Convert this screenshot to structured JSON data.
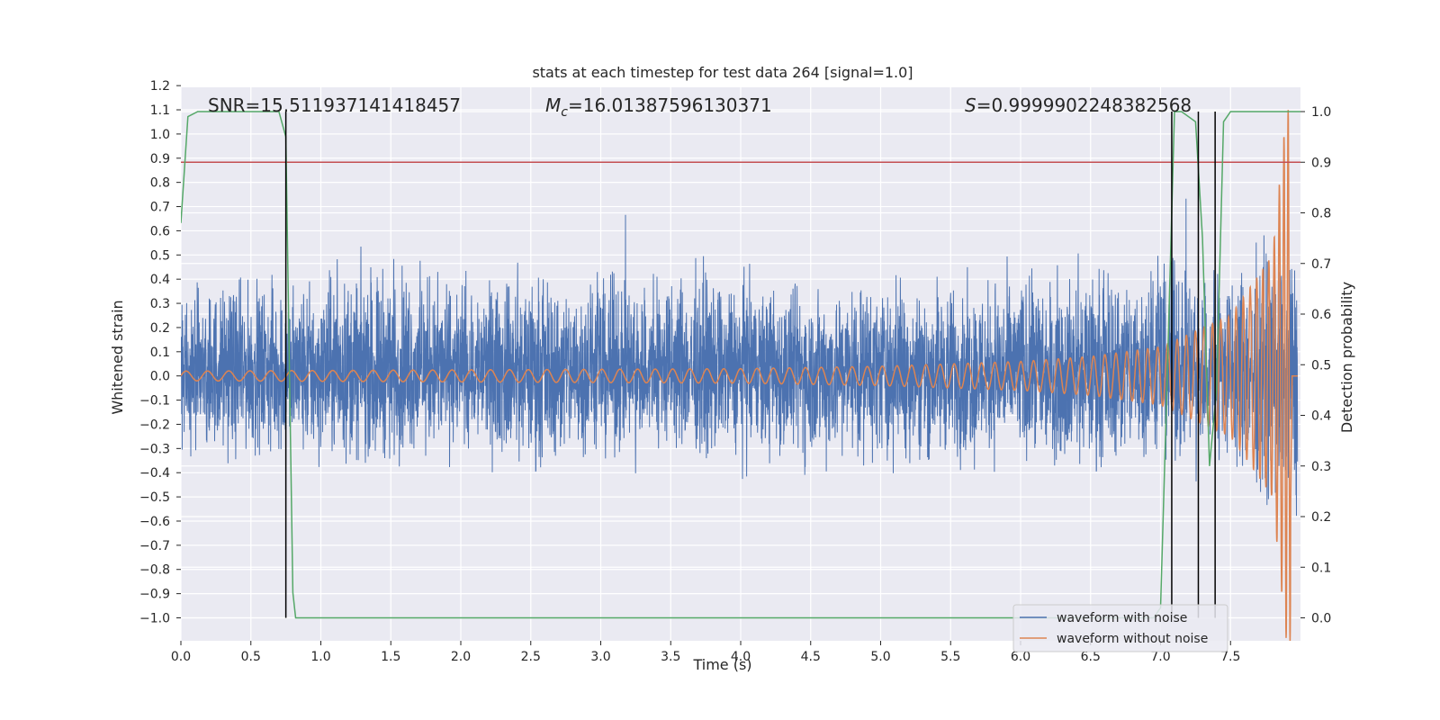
{
  "chart_data": {
    "type": "line",
    "title": "stats at each timestep for test data 264 [signal=1.0]",
    "xlabel": "Time (s)",
    "ylabel_left": "Whitened strain",
    "ylabel_right": "Detection probability",
    "xlim": [
      0.0,
      8.0
    ],
    "ylim_left": [
      -1.1,
      1.2
    ],
    "ylim_right": [
      -0.05,
      1.05
    ],
    "x_ticks": [
      "0.0",
      "0.5",
      "1.0",
      "1.5",
      "2.0",
      "2.5",
      "3.0",
      "3.5",
      "4.0",
      "4.5",
      "5.0",
      "5.5",
      "6.0",
      "6.5",
      "7.0",
      "7.5"
    ],
    "y_ticks_left": [
      "1.2",
      "1.1",
      "1.0",
      "0.9",
      "0.8",
      "0.7",
      "0.6",
      "0.5",
      "0.4",
      "0.3",
      "0.2",
      "0.1",
      "0.0",
      "−0.1",
      "−0.2",
      "−0.3",
      "−0.4",
      "−0.5",
      "−0.6",
      "−0.7",
      "−0.8",
      "−0.9",
      "−1.0"
    ],
    "y_ticks_right": [
      "1.0",
      "0.9",
      "0.8",
      "0.7",
      "0.6",
      "0.5",
      "0.4",
      "0.3",
      "0.2",
      "0.1",
      "0.0"
    ],
    "grid": true,
    "legend_location": "lower-right",
    "annotations": {
      "snr": "SNR=15.511937141418457",
      "mc_prefix": "M",
      "mc_sub": "c",
      "mc_value": "=16.01387596130371",
      "s_prefix": "S",
      "s_value": "=0.9999902248382568"
    },
    "series": [
      {
        "name": "waveform with noise",
        "axis": "left",
        "color": "#4c72b0",
        "envelope_x": [
          0.0,
          0.5,
          1.0,
          1.5,
          2.0,
          2.5,
          3.0,
          3.5,
          4.0,
          4.5,
          5.0,
          5.5,
          6.0,
          6.5,
          7.0,
          7.5,
          7.9
        ],
        "envelope_upper": [
          0.55,
          0.55,
          0.6,
          0.7,
          0.55,
          0.6,
          0.6,
          0.65,
          0.6,
          0.55,
          0.6,
          0.55,
          0.6,
          0.65,
          0.7,
          0.65,
          0.8
        ],
        "envelope_lower": [
          -0.5,
          -0.55,
          -0.6,
          -0.55,
          -0.5,
          -0.6,
          -0.55,
          -0.55,
          -0.55,
          -0.6,
          -0.55,
          -0.6,
          -0.6,
          -0.6,
          -0.55,
          -0.65,
          -0.95
        ]
      },
      {
        "name": "waveform without noise",
        "axis": "left",
        "color": "#dd8452",
        "description_amplitude_x": [
          0.0,
          2.0,
          4.0,
          5.0,
          6.0,
          6.5,
          7.0,
          7.5,
          7.8,
          7.9
        ],
        "description_amplitude_y": [
          0.02,
          0.025,
          0.03,
          0.04,
          0.06,
          0.08,
          0.12,
          0.25,
          0.5,
          1.1
        ]
      },
      {
        "name": "",
        "axis": "right",
        "color": "#55a868",
        "x": [
          0.0,
          0.05,
          0.12,
          0.3,
          0.7,
          0.75,
          0.8,
          0.82,
          6.95,
          7.0,
          7.05,
          7.1,
          7.15,
          7.25,
          7.3,
          7.35,
          7.4,
          7.45,
          7.5,
          8.0
        ],
        "values": [
          0.78,
          0.99,
          1.0,
          1.0,
          1.0,
          0.95,
          0.05,
          0.0,
          0.0,
          0.02,
          0.5,
          1.0,
          1.0,
          0.98,
          0.75,
          0.3,
          0.45,
          0.98,
          1.0,
          1.0
        ]
      }
    ],
    "threshold": {
      "axis": "right",
      "value": 0.9,
      "color": "#c44e52"
    },
    "vlines_x": [
      0.75,
      7.08,
      7.27,
      7.39
    ],
    "vlines_color": "#000000"
  }
}
